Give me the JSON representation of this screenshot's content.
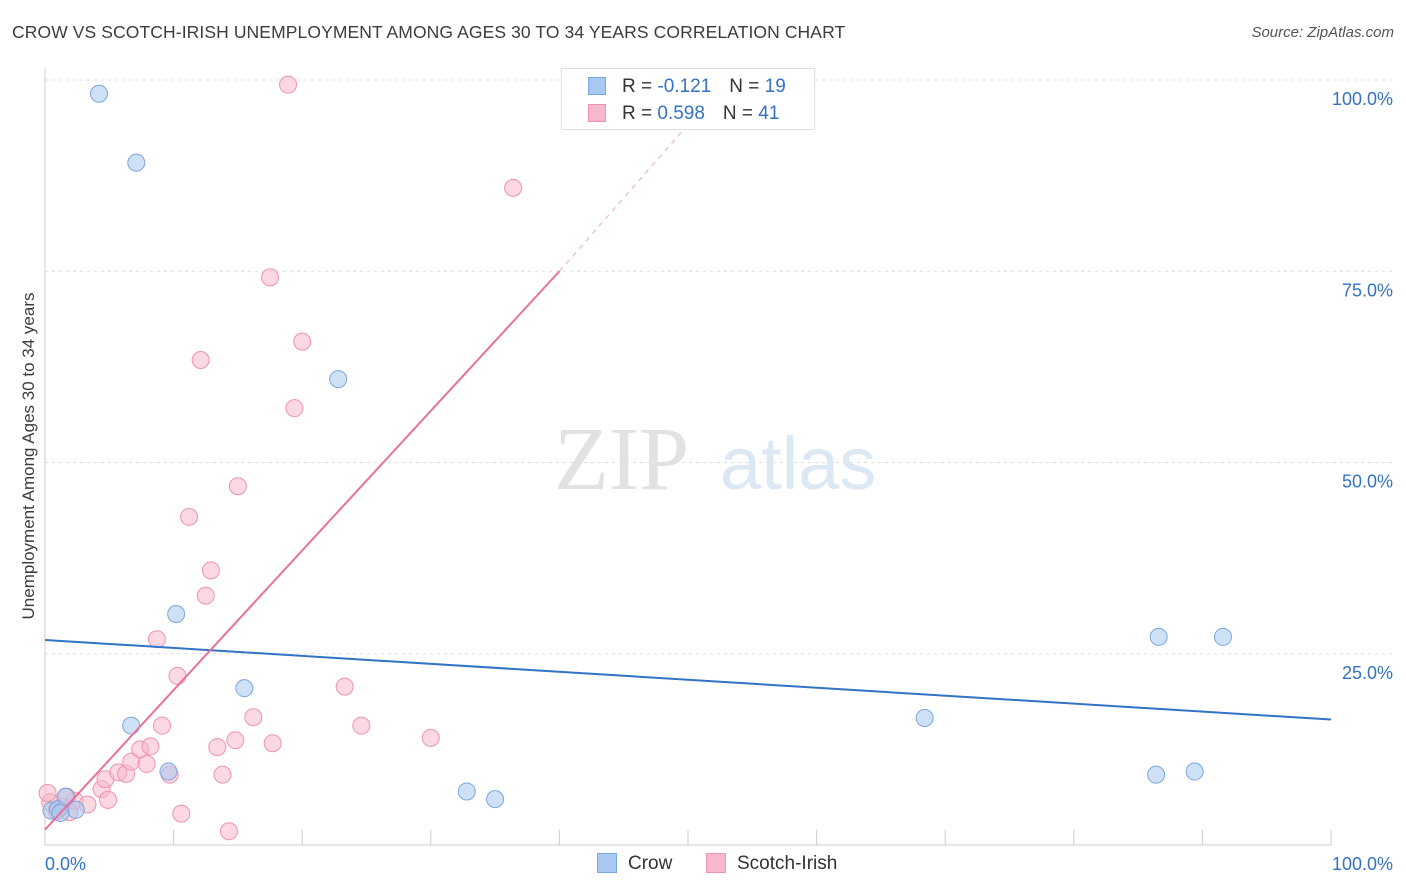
{
  "header": {
    "title": "CROW VS SCOTCH-IRISH UNEMPLOYMENT AMONG AGES 30 TO 34 YEARS CORRELATION CHART",
    "source": "Source: ZipAtlas.com"
  },
  "watermark": {
    "zip": "ZIP",
    "atlas": "atlas"
  },
  "legend": {
    "rows": [
      {
        "r_label": "R = ",
        "r_value": "-0.121",
        "n_label": "N = ",
        "n_value": "19"
      },
      {
        "r_label": "R = ",
        "r_value": "0.598",
        "n_label": "N = ",
        "n_value": "41"
      }
    ]
  },
  "bottom_legend": {
    "crow": "Crow",
    "scotch_irish": "Scotch-Irish"
  },
  "colors": {
    "crow_fill": "#a7c8f0",
    "crow_stroke": "#7aa7dd",
    "crow_line": "#3373c4",
    "scotch_fill": "#f7b8cb",
    "scotch_stroke": "#ee93ae",
    "scotch_line": "#e8709a",
    "tick_label": "#3373c4",
    "grid": "#dddddd"
  },
  "chart_data": {
    "type": "scatter",
    "title": "CROW VS SCOTCH-IRISH UNEMPLOYMENT AMONG AGES 30 TO 34 YEARS CORRELATION CHART",
    "xlabel": "",
    "ylabel": "Unemployment Among Ages 30 to 34 years",
    "xlim": [
      0,
      100
    ],
    "ylim": [
      0,
      100
    ],
    "x_tick_labels": [
      "0.0%",
      "100.0%"
    ],
    "y_ticks": [
      25,
      50,
      75,
      100
    ],
    "y_tick_labels": [
      "25.0%",
      "50.0%",
      "75.0%",
      "100.0%"
    ],
    "series": [
      {
        "name": "Crow",
        "r": -0.121,
        "n": 19,
        "points": [
          [
            0.5,
            4.5
          ],
          [
            1.0,
            4.7
          ],
          [
            1.6,
            6.3
          ],
          [
            2.4,
            4.6
          ],
          [
            4.2,
            98.2
          ],
          [
            7.1,
            89.2
          ],
          [
            6.7,
            15.6
          ],
          [
            9.6,
            9.6
          ],
          [
            10.2,
            30.2
          ],
          [
            15.5,
            20.5
          ],
          [
            22.8,
            60.9
          ],
          [
            32.8,
            7.0
          ],
          [
            35.0,
            6.0
          ],
          [
            68.4,
            16.6
          ],
          [
            86.4,
            9.2
          ],
          [
            86.6,
            27.2
          ],
          [
            89.4,
            9.6
          ],
          [
            91.6,
            27.2
          ],
          [
            1.2,
            4.2
          ]
        ],
        "trend": {
          "x": [
            0,
            100
          ],
          "y": [
            26.8,
            16.4
          ]
        }
      },
      {
        "name": "Scotch-Irish",
        "r": 0.598,
        "n": 41,
        "points": [
          [
            0.4,
            5.6
          ],
          [
            0.9,
            4.4
          ],
          [
            1.3,
            5.0
          ],
          [
            1.9,
            4.3
          ],
          [
            2.3,
            5.8
          ],
          [
            3.3,
            5.3
          ],
          [
            4.4,
            7.3
          ],
          [
            4.9,
            5.9
          ],
          [
            4.7,
            8.6
          ],
          [
            5.7,
            9.5
          ],
          [
            6.3,
            9.3
          ],
          [
            6.7,
            10.9
          ],
          [
            7.4,
            12.5
          ],
          [
            7.9,
            10.6
          ],
          [
            8.2,
            12.9
          ],
          [
            8.7,
            26.9
          ],
          [
            9.1,
            15.6
          ],
          [
            9.7,
            9.2
          ],
          [
            10.3,
            22.1
          ],
          [
            10.6,
            4.1
          ],
          [
            11.2,
            42.9
          ],
          [
            12.1,
            63.4
          ],
          [
            12.5,
            32.6
          ],
          [
            12.9,
            35.9
          ],
          [
            13.4,
            12.8
          ],
          [
            13.8,
            9.2
          ],
          [
            14.3,
            1.8
          ],
          [
            14.8,
            13.7
          ],
          [
            15.0,
            46.9
          ],
          [
            16.2,
            16.7
          ],
          [
            17.5,
            74.2
          ],
          [
            17.7,
            13.3
          ],
          [
            18.9,
            99.4
          ],
          [
            19.4,
            57.1
          ],
          [
            20.0,
            65.8
          ],
          [
            23.3,
            20.7
          ],
          [
            24.6,
            15.6
          ],
          [
            30.0,
            14.0
          ],
          [
            36.4,
            85.9
          ],
          [
            1.7,
            6.3
          ],
          [
            0.2,
            6.8
          ]
        ],
        "trend": {
          "x": [
            0,
            40
          ],
          "y": [
            2,
            75
          ],
          "dashed_extension": {
            "x": [
              40,
              52
            ],
            "y": [
              75,
              98
            ]
          }
        }
      }
    ]
  }
}
